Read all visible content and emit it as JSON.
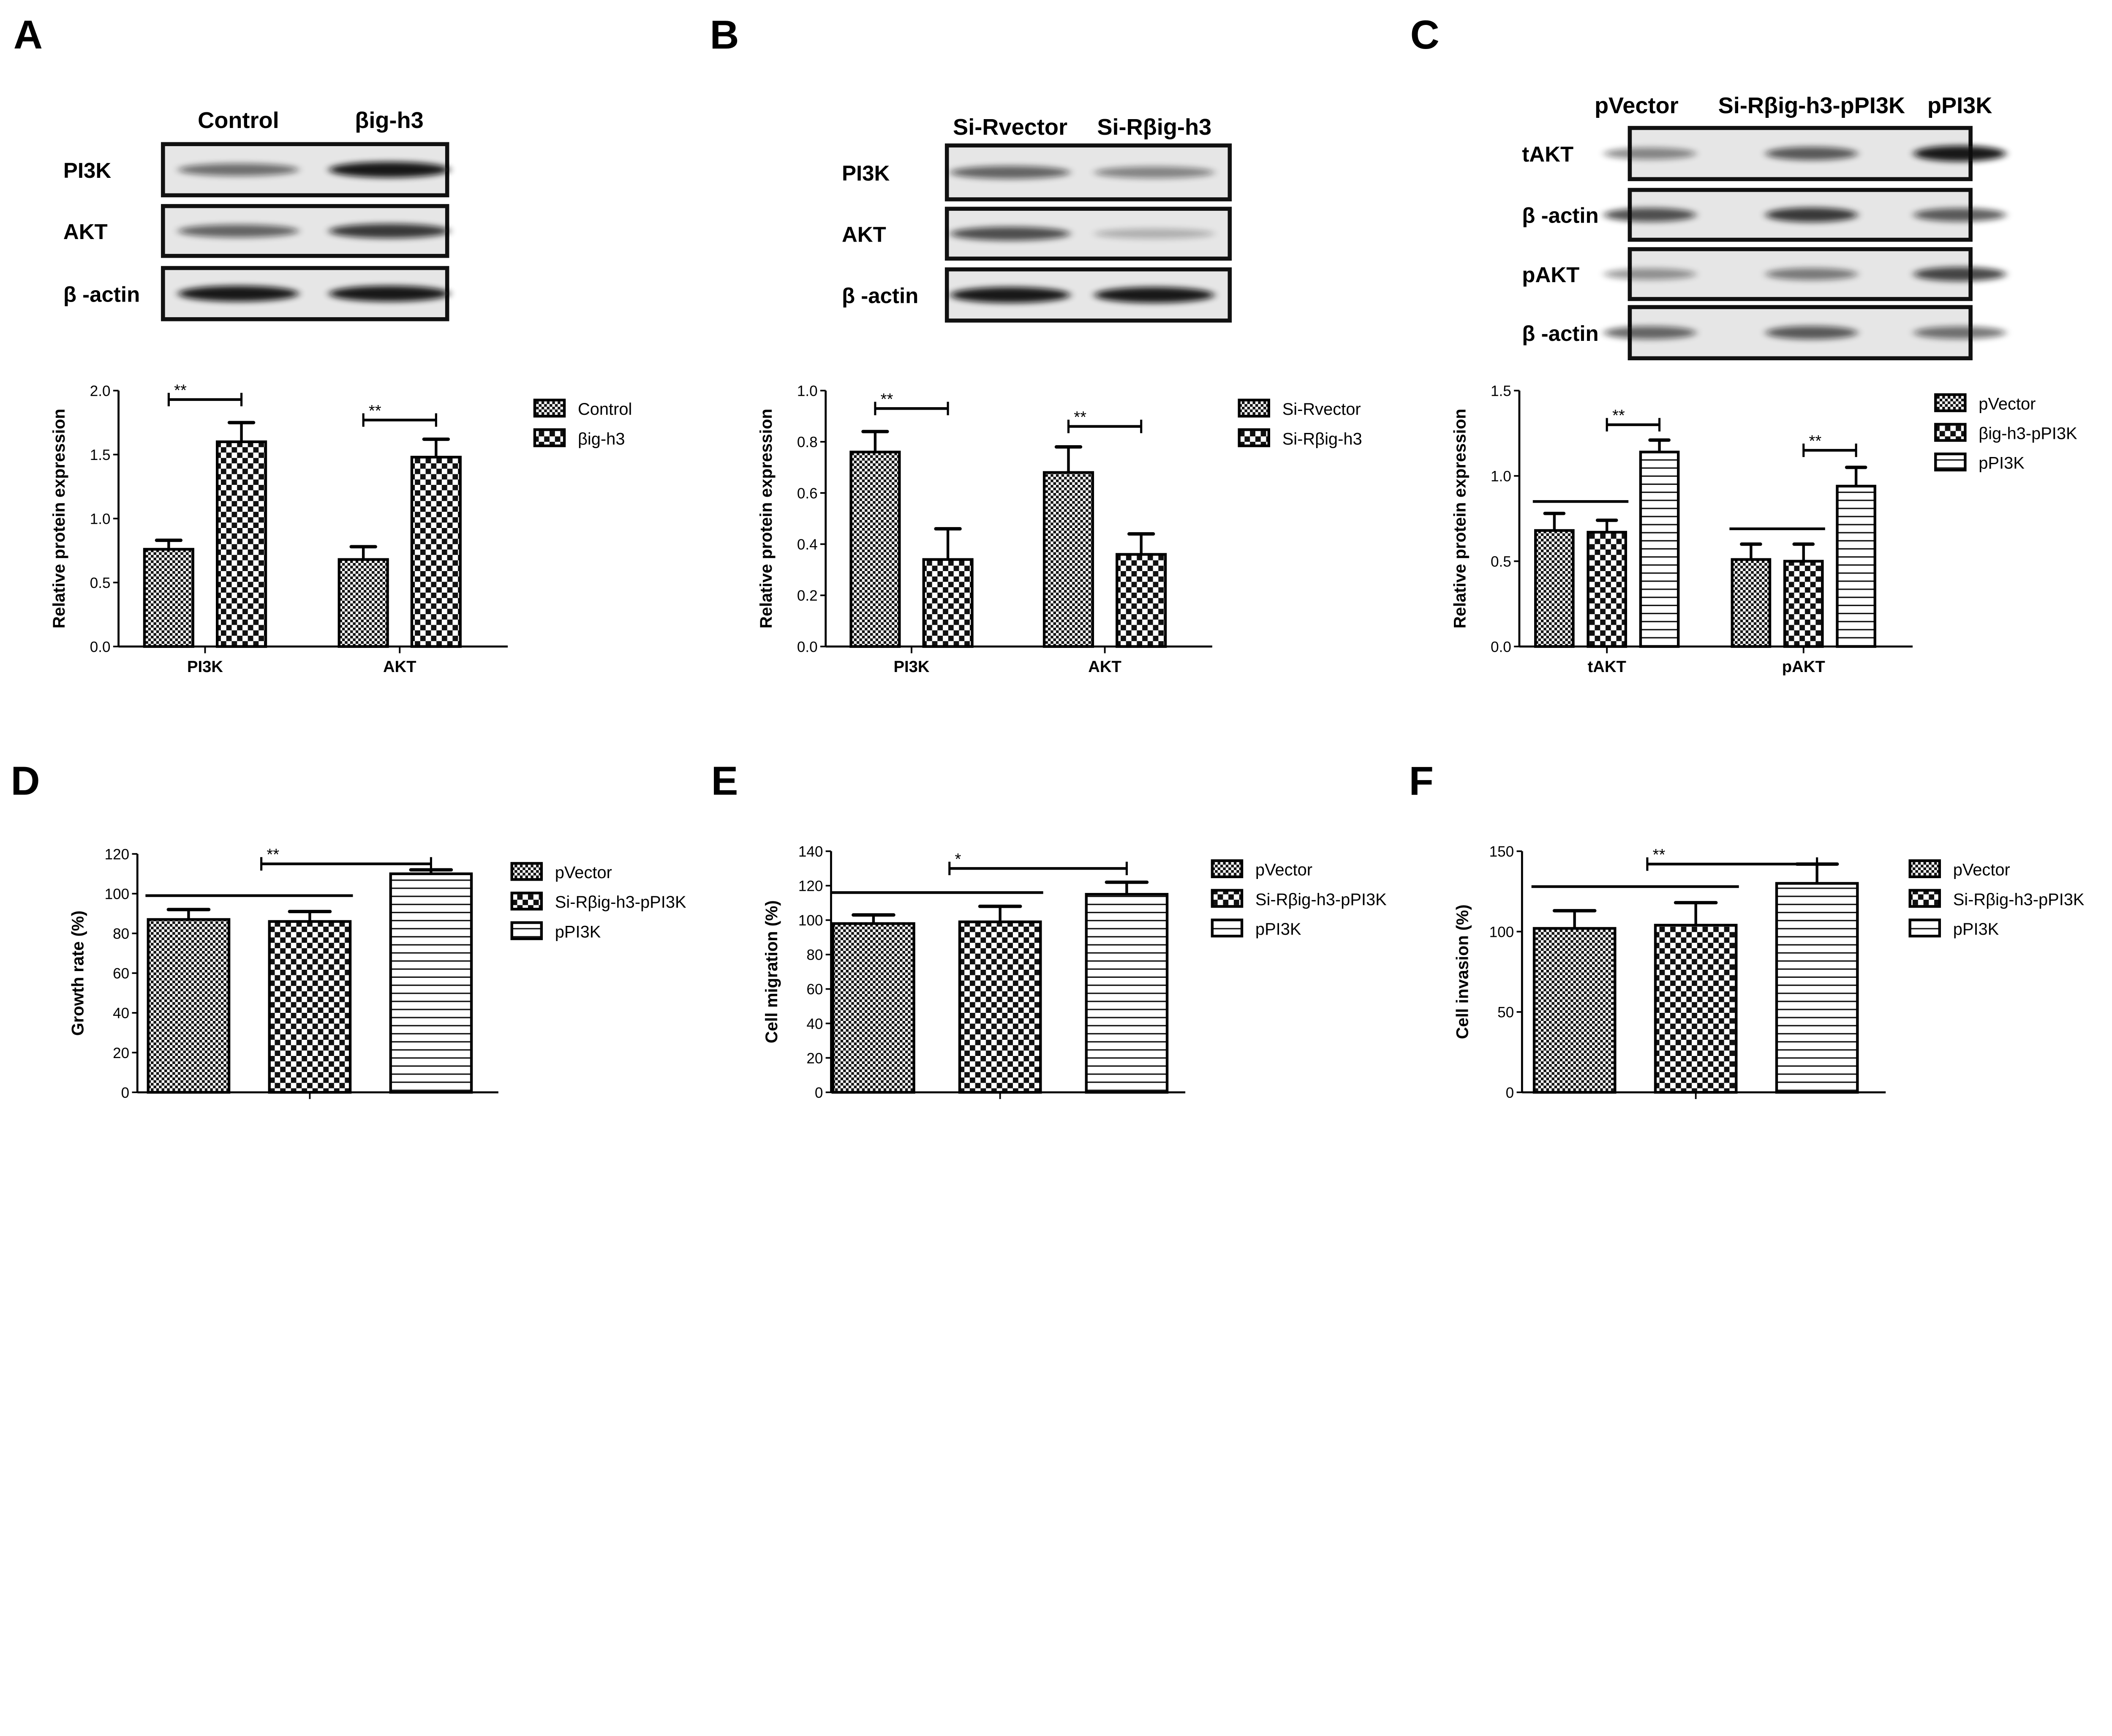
{
  "panels": [
    "A",
    "B",
    "C",
    "D",
    "E",
    "F"
  ],
  "blots": [
    {
      "panel": "A",
      "lanes": [
        "Control",
        "βig-h3"
      ],
      "rows": [
        {
          "label": "PI3K",
          "bands": [
            0.55,
            0.95
          ]
        },
        {
          "label": "AKT",
          "bands": [
            0.6,
            0.8
          ]
        },
        {
          "label": "β -actin",
          "bands": [
            0.95,
            0.95
          ]
        }
      ]
    },
    {
      "panel": "B",
      "lanes": [
        "Si-Rvector",
        "Si-Rβig-h3"
      ],
      "rows": [
        {
          "label": "PI3K",
          "bands": [
            0.6,
            0.45
          ]
        },
        {
          "label": "AKT",
          "bands": [
            0.7,
            0.25
          ]
        },
        {
          "label": "β -actin",
          "bands": [
            0.95,
            0.95
          ]
        }
      ]
    },
    {
      "panel": "C",
      "lanes": [
        "pVector",
        "Si-Rβig-h3-pPI3K",
        "pPI3K"
      ],
      "rows": [
        {
          "label": "tAKT",
          "bands": [
            0.45,
            0.65,
            0.95
          ]
        },
        {
          "label": "β -actin",
          "bands": [
            0.7,
            0.8,
            0.65
          ]
        },
        {
          "label": "pAKT",
          "bands": [
            0.4,
            0.5,
            0.75
          ]
        },
        {
          "label": "β -actin",
          "bands": [
            0.6,
            0.65,
            0.55
          ]
        }
      ]
    }
  ],
  "chart_data": [
    {
      "panel": "A",
      "type": "bar",
      "ylabel": "Relative protein expression",
      "ylim": [
        0,
        2.0
      ],
      "yticks": [
        "0.0",
        "0.5",
        "1.0",
        "1.5",
        "2.0"
      ],
      "ytick_values": [
        0,
        0.5,
        1.0,
        1.5,
        2.0
      ],
      "categories": [
        "PI3K",
        "AKT"
      ],
      "series": [
        {
          "name": "Control",
          "pattern": "fine",
          "values": [
            0.76,
            0.68
          ],
          "errors": [
            0.07,
            0.1
          ]
        },
        {
          "name": "βig-h3",
          "pattern": "checker",
          "values": [
            1.6,
            1.48
          ],
          "errors": [
            0.15,
            0.14
          ]
        }
      ],
      "annotations": [
        {
          "group": 0,
          "from": 0,
          "to": 1,
          "y": 1.93,
          "label": "**",
          "type": "bracket"
        },
        {
          "group": 1,
          "from": 0,
          "to": 1,
          "y": 1.77,
          "label": "**",
          "type": "bracket"
        }
      ]
    },
    {
      "panel": "B",
      "type": "bar",
      "ylabel": "Relative protein expression",
      "ylim": [
        0,
        1.0
      ],
      "yticks": [
        "0.0",
        "0.2",
        "0.4",
        "0.6",
        "0.8",
        "1.0"
      ],
      "ytick_values": [
        0,
        0.2,
        0.4,
        0.6,
        0.8,
        1.0
      ],
      "categories": [
        "PI3K",
        "AKT"
      ],
      "series": [
        {
          "name": "Si-Rvector",
          "pattern": "fine",
          "values": [
            0.76,
            0.68
          ],
          "errors": [
            0.08,
            0.1
          ]
        },
        {
          "name": "Si-Rβig-h3",
          "pattern": "checker",
          "values": [
            0.34,
            0.36
          ],
          "errors": [
            0.12,
            0.08
          ]
        }
      ],
      "annotations": [
        {
          "group": 0,
          "from": 0,
          "to": 1,
          "y": 0.93,
          "label": "**",
          "type": "bracket"
        },
        {
          "group": 1,
          "from": 0,
          "to": 1,
          "y": 0.86,
          "label": "**",
          "type": "bracket"
        }
      ]
    },
    {
      "panel": "C",
      "type": "bar",
      "ylabel": "Relative protein expression",
      "ylim": [
        0,
        1.5
      ],
      "yticks": [
        "0.0",
        "0.5",
        "1.0",
        "1.5"
      ],
      "ytick_values": [
        0,
        0.5,
        1.0,
        1.5
      ],
      "categories": [
        "tAKT",
        "pAKT"
      ],
      "series": [
        {
          "name": "pVector",
          "pattern": "fine",
          "values": [
            0.68,
            0.51
          ],
          "errors": [
            0.1,
            0.09
          ]
        },
        {
          "name": "βig-h3-pPI3K",
          "pattern": "checker",
          "values": [
            0.67,
            0.5
          ],
          "errors": [
            0.07,
            0.1
          ]
        },
        {
          "name": "pPI3K",
          "pattern": "hlines",
          "values": [
            1.14,
            0.94
          ],
          "errors": [
            0.07,
            0.11
          ]
        }
      ],
      "annotations": [
        {
          "group": 0,
          "from": 1,
          "to": 2,
          "y": 1.3,
          "label": "**",
          "type": "bracket"
        },
        {
          "group": 0,
          "from": 0,
          "to": 1,
          "y": 0.85,
          "label": "",
          "type": "line"
        },
        {
          "group": 1,
          "from": 1,
          "to": 2,
          "y": 1.15,
          "label": "**",
          "type": "bracket"
        },
        {
          "group": 1,
          "from": 0,
          "to": 1,
          "y": 0.69,
          "label": "",
          "type": "line"
        }
      ]
    },
    {
      "panel": "D",
      "type": "bar",
      "ylabel": "Growth rate (%)",
      "ylim": [
        0,
        120
      ],
      "yticks": [
        "0",
        "20",
        "40",
        "60",
        "80",
        "100",
        "120"
      ],
      "ytick_values": [
        0,
        20,
        40,
        60,
        80,
        100,
        120
      ],
      "categories": [
        ""
      ],
      "series": [
        {
          "name": "pVector",
          "pattern": "fine",
          "values": [
            87
          ],
          "errors": [
            5
          ]
        },
        {
          "name": "Si-Rβig-h3-pPI3K",
          "pattern": "checker",
          "values": [
            86
          ],
          "errors": [
            5
          ]
        },
        {
          "name": "pPI3K",
          "pattern": "hlines",
          "values": [
            110
          ],
          "errors": [
            2
          ]
        }
      ],
      "annotations": [
        {
          "group": 0,
          "from": 0.6,
          "to": 2,
          "y": 115,
          "label": "**",
          "type": "bracket"
        },
        {
          "group": 0,
          "from": 0,
          "to": 1,
          "y": 99,
          "label": "",
          "type": "line"
        }
      ]
    },
    {
      "panel": "E",
      "type": "bar",
      "ylabel": "Cell migration (%)",
      "ylim": [
        0,
        140
      ],
      "yticks": [
        "0",
        "20",
        "40",
        "60",
        "80",
        "100",
        "120",
        "140"
      ],
      "ytick_values": [
        0,
        20,
        40,
        60,
        80,
        100,
        120,
        140
      ],
      "categories": [
        ""
      ],
      "series": [
        {
          "name": "pVector",
          "pattern": "fine",
          "values": [
            98
          ],
          "errors": [
            5
          ]
        },
        {
          "name": "Si-Rβig-h3-pPI3K",
          "pattern": "checker",
          "values": [
            99
          ],
          "errors": [
            9
          ]
        },
        {
          "name": "pPI3K",
          "pattern": "hlines",
          "values": [
            115
          ],
          "errors": [
            7
          ]
        }
      ],
      "annotations": [
        {
          "group": 0,
          "from": 0.6,
          "to": 2,
          "y": 130,
          "label": "*",
          "type": "bracket"
        },
        {
          "group": 0,
          "from": 0,
          "to": 1,
          "y": 116,
          "label": "",
          "type": "line"
        }
      ]
    },
    {
      "panel": "F",
      "type": "bar",
      "ylabel": "Cell invasion (%)",
      "ylim": [
        0,
        150
      ],
      "yticks": [
        "0",
        "50",
        "100",
        "150"
      ],
      "ytick_values": [
        0,
        50,
        100,
        150
      ],
      "categories": [
        ""
      ],
      "series": [
        {
          "name": "pVector",
          "pattern": "fine",
          "values": [
            102
          ],
          "errors": [
            11
          ]
        },
        {
          "name": "Si-Rβig-h3-pPI3K",
          "pattern": "checker",
          "values": [
            104
          ],
          "errors": [
            14
          ]
        },
        {
          "name": "pPI3K",
          "pattern": "hlines",
          "values": [
            130
          ],
          "errors": [
            12
          ]
        }
      ],
      "annotations": [
        {
          "group": 0,
          "from": 0.6,
          "to": 2,
          "y": 142,
          "label": "**",
          "type": "bracket"
        },
        {
          "group": 0,
          "from": 0,
          "to": 1,
          "y": 128,
          "label": "",
          "type": "line"
        }
      ]
    }
  ]
}
